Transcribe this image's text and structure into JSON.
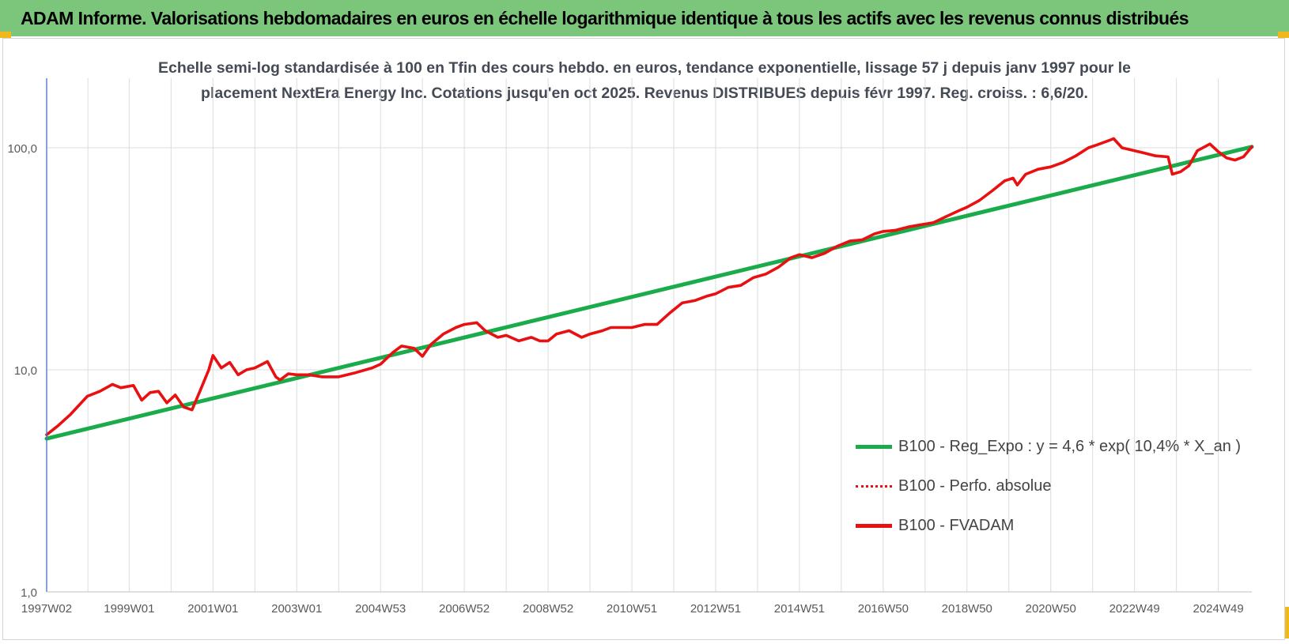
{
  "header": {
    "title": "ADAM Informe. Valorisations hebdomadaires en euros en échelle logarithmique identique à tous les actifs avec les revenus connus distribués"
  },
  "colors": {
    "banner": "#7cc67c",
    "regression": "#1aab4b",
    "perf_absolue": "#e81010",
    "fvadam": "#e81010",
    "grid": "#dcdcdc",
    "axis": "#4472c4",
    "corner_marks": "#f1b81b"
  },
  "chart_data": {
    "type": "line",
    "title": "Echelle semi-log standardisée à 100 en Tfin des cours hebdo. en euros, tendance exponentielle, lissage 57 j depuis janv 1997 pour le placement NextEra Energy Inc. Cotations jusqu'en oct 2025. Revenus DISTRIBUES depuis févr 1997. Reg. croiss. : 6,6/20.",
    "title_lines": [
      "Echelle semi-log standardisée à 100 en Tfin des cours hebdo. en euros, tendance exponentielle, lissage 57 j depuis janv 1997 pour le",
      "placement NextEra Energy Inc. Cotations jusqu'en oct 2025. Revenus DISTRIBUES depuis févr 1997. Reg. croiss. : 6,6/20."
    ],
    "xlabel": "",
    "ylabel": "",
    "y_scale": "log",
    "ylim": [
      1,
      180
    ],
    "xlim": [
      1997.03,
      2025.8
    ],
    "grid": true,
    "legend_position": "bottom-right",
    "y_ticks": [
      {
        "value": 1,
        "label": "1,0"
      },
      {
        "value": 10,
        "label": "10,0"
      },
      {
        "value": 100,
        "label": "100,0"
      }
    ],
    "x_ticks": [
      {
        "x": 1997.03,
        "label": "1997W02"
      },
      {
        "x": 1999.0,
        "label": "1999W01"
      },
      {
        "x": 2001.0,
        "label": "2001W01"
      },
      {
        "x": 2003.0,
        "label": "2003W01"
      },
      {
        "x": 2005.0,
        "label": "2004W53"
      },
      {
        "x": 2007.0,
        "label": "2006W52"
      },
      {
        "x": 2009.0,
        "label": "2008W52"
      },
      {
        "x": 2011.0,
        "label": "2010W51"
      },
      {
        "x": 2013.0,
        "label": "2012W51"
      },
      {
        "x": 2015.0,
        "label": "2014W51"
      },
      {
        "x": 2017.0,
        "label": "2016W50"
      },
      {
        "x": 2019.0,
        "label": "2018W50"
      },
      {
        "x": 2021.0,
        "label": "2020W50"
      },
      {
        "x": 2023.0,
        "label": "2022W49"
      },
      {
        "x": 2025.0,
        "label": "2024W49"
      }
    ],
    "series": [
      {
        "name": "B100 - Reg_Expo : y = 4,6 * exp( 10,4% *  X_an )",
        "style": "solid",
        "x": [
          1997.03,
          2025.8
        ],
        "y": [
          4.9,
          101
        ]
      },
      {
        "name": "B100 - Perfo. absolue",
        "style": "dotted",
        "x": [],
        "y": []
      },
      {
        "name": "B100 - FVADAM",
        "style": "solid",
        "x": [
          1997.03,
          1997.3,
          1997.6,
          1998.0,
          1998.3,
          1998.6,
          1998.8,
          1999.1,
          1999.3,
          1999.5,
          1999.7,
          1999.9,
          2000.1,
          2000.3,
          2000.5,
          2000.7,
          2000.9,
          2001.0,
          2001.2,
          2001.4,
          2001.6,
          2001.8,
          2002.0,
          2002.3,
          2002.5,
          2002.6,
          2002.8,
          2003.0,
          2003.3,
          2003.6,
          2004.0,
          2004.4,
          2004.8,
          2005.0,
          2005.3,
          2005.5,
          2005.8,
          2006.0,
          2006.2,
          2006.5,
          2006.8,
          2007.0,
          2007.3,
          2007.5,
          2007.8,
          2008.0,
          2008.3,
          2008.6,
          2008.8,
          2009.0,
          2009.2,
          2009.5,
          2009.8,
          2010.0,
          2010.3,
          2010.5,
          2010.8,
          2011.0,
          2011.3,
          2011.6,
          2011.9,
          2012.2,
          2012.5,
          2012.8,
          2013.0,
          2013.3,
          2013.6,
          2013.9,
          2014.2,
          2014.5,
          2014.8,
          2015.0,
          2015.3,
          2015.6,
          2015.9,
          2016.2,
          2016.5,
          2016.8,
          2017.0,
          2017.3,
          2017.6,
          2017.9,
          2018.2,
          2018.5,
          2018.8,
          2019.0,
          2019.3,
          2019.6,
          2019.9,
          2020.1,
          2020.2,
          2020.4,
          2020.7,
          2021.0,
          2021.3,
          2021.6,
          2021.9,
          2022.1,
          2022.4,
          2022.5,
          2022.7,
          2022.9,
          2023.2,
          2023.5,
          2023.8,
          2023.9,
          2024.1,
          2024.3,
          2024.5,
          2024.8,
          2025.0,
          2025.2,
          2025.4,
          2025.6,
          2025.8
        ],
        "y": [
          5.1,
          5.6,
          6.3,
          7.6,
          8.0,
          8.6,
          8.3,
          8.5,
          7.3,
          7.9,
          8.0,
          7.1,
          7.7,
          6.8,
          6.6,
          8.1,
          10.0,
          11.6,
          10.2,
          10.8,
          9.5,
          10.0,
          10.2,
          10.9,
          9.3,
          9.0,
          9.6,
          9.5,
          9.5,
          9.3,
          9.3,
          9.7,
          10.2,
          10.6,
          12.0,
          12.8,
          12.5,
          11.5,
          13.0,
          14.5,
          15.5,
          16.0,
          16.3,
          15.0,
          14.0,
          14.3,
          13.5,
          14.0,
          13.5,
          13.5,
          14.5,
          15.0,
          14.0,
          14.5,
          15.0,
          15.5,
          15.5,
          15.5,
          16.0,
          16.0,
          18.0,
          20.0,
          20.5,
          21.5,
          22.0,
          23.5,
          24.0,
          26.0,
          27.0,
          29.0,
          32.0,
          33.0,
          32.0,
          33.5,
          36.0,
          38.0,
          38.5,
          41.0,
          42.0,
          42.5,
          44.0,
          45.0,
          46.0,
          49.0,
          52.0,
          54.0,
          58.0,
          64.0,
          71.0,
          73.0,
          68.0,
          76.0,
          80.0,
          82.0,
          86.0,
          92.0,
          100.0,
          103.0,
          108.0,
          110.0,
          100.0,
          98.0,
          95.0,
          92.0,
          91.0,
          76.0,
          78.0,
          83.0,
          97.0,
          104.0,
          96.0,
          90.0,
          88.0,
          91.0,
          101.0
        ]
      }
    ]
  }
}
